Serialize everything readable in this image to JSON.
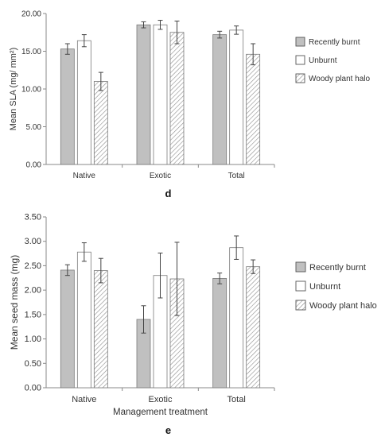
{
  "colors": {
    "recently_burnt": "#c0c0c0",
    "unburnt": "#ffffff",
    "woody_halo_hatch": "#8c8c8c",
    "axis": "#8a8a8a",
    "text": "#333333",
    "error_bar": "#444444"
  },
  "chart_data": [
    {
      "type": "bar",
      "panel_label": "d",
      "categories": [
        "Native",
        "Exotic",
        "Total"
      ],
      "ylabel": "Mean SLA (mg/ mm²)",
      "xlabel": "",
      "ylim": [
        0,
        20
      ],
      "yticks": [
        "0.00",
        "5.00",
        "10.00",
        "15.00",
        "20.00"
      ],
      "grid": false,
      "legend_position": "right",
      "series": [
        {
          "name": "Recently burnt",
          "pattern": "gray",
          "values": [
            15.3,
            18.5,
            17.2
          ],
          "errors": [
            0.7,
            0.4,
            0.45
          ]
        },
        {
          "name": "Unburnt",
          "pattern": "white",
          "values": [
            16.4,
            18.5,
            17.8
          ],
          "errors": [
            0.8,
            0.6,
            0.55
          ]
        },
        {
          "name": "Woody plant halo",
          "pattern": "hatch",
          "values": [
            11.0,
            17.5,
            14.6
          ],
          "errors": [
            1.2,
            1.5,
            1.4
          ]
        }
      ]
    },
    {
      "type": "bar",
      "panel_label": "e",
      "categories": [
        "Native",
        "Exotic",
        "Total"
      ],
      "ylabel": "Mean seed mass (mg)",
      "xlabel": "Management treatment",
      "ylim": [
        0,
        3.5
      ],
      "yticks": [
        "0.00",
        "0.50",
        "1.00",
        "1.50",
        "2.00",
        "2.50",
        "3.00",
        "3.50"
      ],
      "grid": false,
      "legend_position": "right",
      "series": [
        {
          "name": "Recently burnt",
          "pattern": "gray",
          "values": [
            2.41,
            1.4,
            2.24
          ],
          "errors": [
            0.11,
            0.28,
            0.11
          ]
        },
        {
          "name": "Unburnt",
          "pattern": "white",
          "values": [
            2.78,
            2.3,
            2.87
          ],
          "errors": [
            0.19,
            0.46,
            0.24
          ]
        },
        {
          "name": "Woody plant halo",
          "pattern": "hatch",
          "values": [
            2.4,
            2.23,
            2.48
          ],
          "errors": [
            0.25,
            0.75,
            0.14
          ]
        }
      ]
    }
  ]
}
